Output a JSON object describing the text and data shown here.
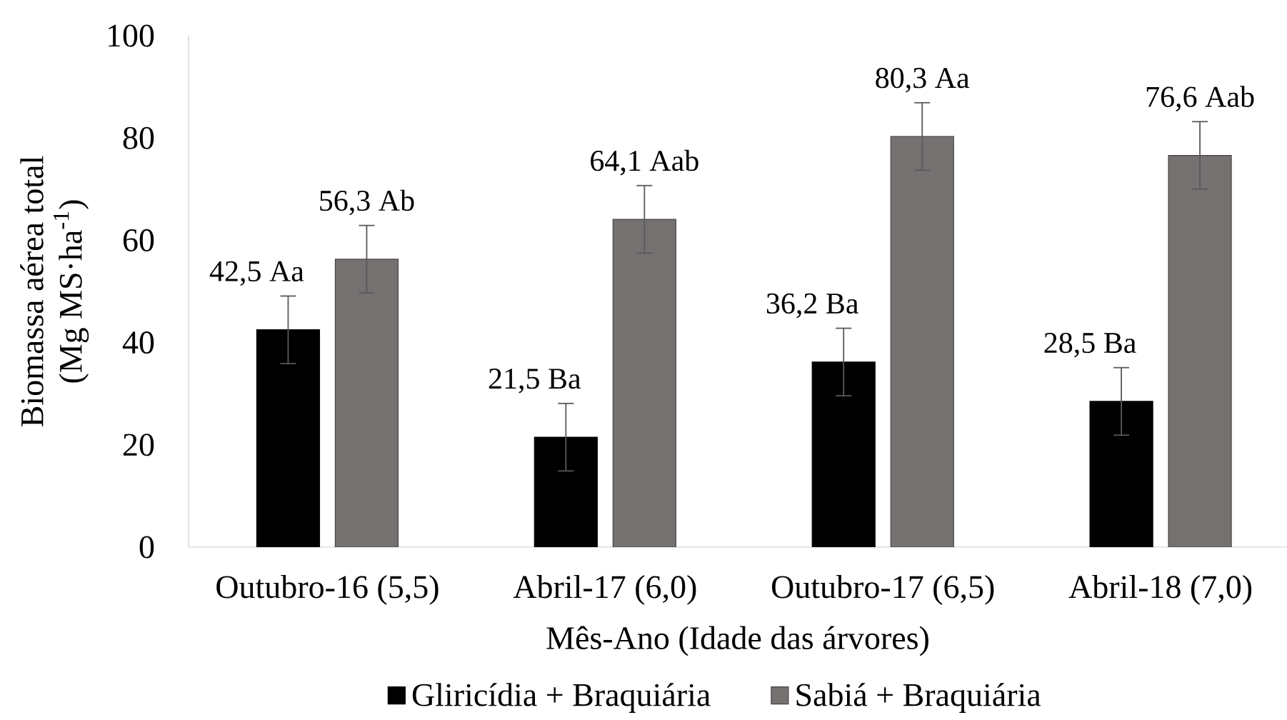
{
  "chart_data": {
    "type": "bar",
    "xlabel": "Mês-Ano (Idade das árvores)",
    "ylabel": "Biomassa aérea total (Mg MS·ha$^{-1}$)",
    "categories": [
      "Outubro-16 (5,5)",
      "Abril-17 (6,0)",
      "Outubro-17 (6,5)",
      "Abril-18 (7,0)"
    ],
    "series": [
      {
        "name": "Gliricídia + Braquiária",
        "color": "#000000",
        "values": [
          42.5,
          21.5,
          36.2,
          28.5
        ],
        "errors": [
          6.6,
          6.6,
          6.6,
          6.6
        ],
        "value_labels": [
          "42,5 Aa",
          "21,5 Ba",
          "36,2 Ba",
          "28,5 Ba"
        ]
      },
      {
        "name": "Sabiá + Braquiária",
        "color": "#767171",
        "values": [
          56.3,
          64.1,
          80.3,
          76.6
        ],
        "errors": [
          6.6,
          6.6,
          6.6,
          6.6
        ],
        "value_labels": [
          "56,3 Ab",
          "64,1 Aab",
          "80,3 Aa",
          "76,6 Aab"
        ]
      }
    ],
    "ylim": [
      0,
      100
    ],
    "yticks": [
      0,
      20,
      40,
      60,
      80,
      100
    ],
    "legend": "bottom"
  }
}
